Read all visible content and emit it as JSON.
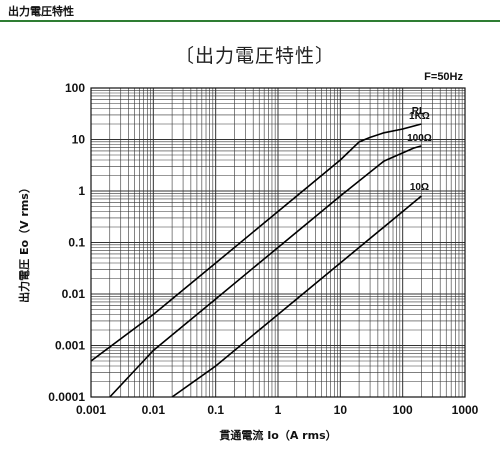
{
  "header": {
    "title": "出力電圧特性"
  },
  "chart_data": {
    "type": "line",
    "title": "〔出力電圧特性〕",
    "xlabel": "貫通電流 Io（A rms）",
    "ylabel": "出力電圧 Eo（V rms）",
    "x_scale": "log",
    "y_scale": "log",
    "xlim": [
      0.001,
      1000
    ],
    "ylim": [
      0.0001,
      100
    ],
    "x_ticks": [
      "0.001",
      "0.01",
      "0.1",
      "1",
      "10",
      "100",
      "1000"
    ],
    "y_ticks": [
      "100",
      "10",
      "1",
      "0.1",
      "0.01",
      "0.001",
      "0.0001"
    ],
    "grid": true,
    "annotations": {
      "frequency": "F=50Hz",
      "legend_title": "RL"
    },
    "series": [
      {
        "name": "1KΩ",
        "x": [
          0.001,
          0.01,
          0.1,
          1,
          10,
          20,
          30,
          50,
          100,
          200
        ],
        "y": [
          0.0005,
          0.004,
          0.04,
          0.4,
          4,
          9,
          11,
          13.5,
          16,
          20
        ]
      },
      {
        "name": "100Ω",
        "x": [
          0.002,
          0.01,
          0.1,
          1,
          10,
          50,
          100,
          150,
          200
        ],
        "y": [
          0.0001,
          0.0008,
          0.008,
          0.08,
          0.8,
          3.8,
          5.5,
          6.8,
          7.5
        ]
      },
      {
        "name": "10Ω",
        "x": [
          0.02,
          0.1,
          1,
          10,
          100,
          200
        ],
        "y": [
          0.0001,
          0.0004,
          0.004,
          0.04,
          0.4,
          0.8
        ]
      }
    ]
  }
}
